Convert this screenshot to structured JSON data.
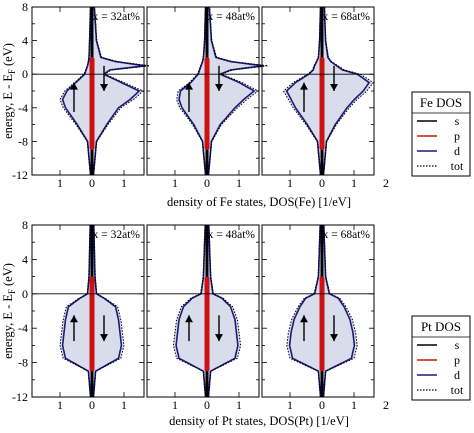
{
  "chart_data": [
    {
      "type": "area",
      "element": "Fe",
      "xlabel": "density of Fe states, DOS(Fe) [1/eV]",
      "ylabel_main": "energy, E - E",
      "ylabel_sub": "F",
      "ylabel_unit": "(eV)",
      "ylim": [
        -12,
        8
      ],
      "yticks": [
        "8",
        "4",
        "0",
        "-4",
        "-8",
        "-12"
      ],
      "xticks": [
        "1",
        "0",
        "1",
        "2"
      ],
      "legend_title": "Fe DOS",
      "legend_items": [
        "s",
        "p",
        "d",
        "tot"
      ],
      "panels": [
        {
          "label": "x = 32at%",
          "tot": {
            "energy": [
              -12,
              -8,
              -6,
              -4,
              -3,
              -2,
              -1,
              0,
              0.5,
              1,
              1.5,
              2,
              4,
              8
            ],
            "down": [
              0.05,
              0.15,
              0.5,
              0.9,
              1.0,
              0.85,
              0.55,
              0.25,
              0.2,
              0.15,
              0.12,
              0.1,
              0.08,
              0.05
            ],
            "up": [
              0.05,
              0.15,
              0.5,
              0.9,
              1.3,
              1.6,
              1.0,
              0.4,
              0.6,
              1.8,
              0.8,
              0.3,
              0.15,
              0.08
            ]
          }
        },
        {
          "label": "x = 48at%",
          "tot": {
            "energy": [
              -12,
              -8,
              -6,
              -4,
              -3,
              -2,
              -1,
              0,
              0.5,
              1,
              1.5,
              2,
              4,
              8
            ],
            "down": [
              0.05,
              0.15,
              0.45,
              0.85,
              0.95,
              0.9,
              0.55,
              0.3,
              0.25,
              0.2,
              0.15,
              0.12,
              0.08,
              0.05
            ],
            "up": [
              0.05,
              0.15,
              0.45,
              0.95,
              1.25,
              1.6,
              1.1,
              0.45,
              0.8,
              1.9,
              0.8,
              0.3,
              0.15,
              0.08
            ]
          }
        },
        {
          "label": "x = 68at%",
          "tot": {
            "energy": [
              -12,
              -8,
              -6,
              -4,
              -3,
              -2,
              -1,
              0,
              0.5,
              1,
              1.5,
              2,
              4,
              8
            ],
            "down": [
              0.05,
              0.15,
              0.5,
              0.9,
              1.05,
              1.2,
              0.9,
              0.45,
              0.3,
              0.25,
              0.18,
              0.12,
              0.08,
              0.05
            ],
            "up": [
              0.05,
              0.15,
              0.45,
              0.85,
              1.1,
              1.4,
              1.6,
              1.2,
              0.7,
              0.5,
              0.3,
              0.2,
              0.12,
              0.08
            ]
          }
        }
      ]
    },
    {
      "type": "area",
      "element": "Pt",
      "xlabel": "density of Pt states, DOS(Pt) [1/eV]",
      "ylabel_main": "energy, E - E",
      "ylabel_sub": "F",
      "ylabel_unit": "(eV)",
      "ylim": [
        -12,
        8
      ],
      "yticks": [
        "8",
        "4",
        "0",
        "-4",
        "-8",
        "-12"
      ],
      "xticks": [
        "1",
        "0",
        "1",
        "2"
      ],
      "legend_title": "Pt DOS",
      "legend_items": [
        "s",
        "p",
        "d",
        "tot"
      ],
      "panels": [
        {
          "label": "x = 32at%",
          "tot": {
            "energy": [
              -12,
              -9,
              -7.5,
              -6,
              -4.5,
              -3,
              -1.5,
              -0.5,
              0,
              2,
              8
            ],
            "down": [
              0.05,
              0.12,
              0.9,
              1.0,
              0.95,
              0.9,
              0.8,
              0.4,
              0.15,
              0.1,
              0.06
            ],
            "up": [
              0.05,
              0.12,
              0.9,
              1.0,
              0.95,
              0.9,
              0.8,
              0.4,
              0.15,
              0.1,
              0.06
            ]
          }
        },
        {
          "label": "x = 48at%",
          "tot": {
            "energy": [
              -12,
              -9,
              -7.5,
              -6,
              -4.5,
              -3,
              -1.5,
              -0.5,
              0,
              2,
              8
            ],
            "down": [
              0.05,
              0.12,
              0.95,
              1.05,
              1.0,
              0.95,
              0.8,
              0.5,
              0.2,
              0.12,
              0.06
            ],
            "up": [
              0.05,
              0.12,
              0.95,
              1.05,
              1.0,
              0.95,
              0.8,
              0.5,
              0.2,
              0.12,
              0.06
            ]
          }
        },
        {
          "label": "x = 68at%",
          "tot": {
            "energy": [
              -12,
              -9,
              -7.5,
              -6,
              -4.5,
              -3,
              -1.5,
              -0.5,
              0,
              2,
              8
            ],
            "down": [
              0.05,
              0.12,
              1.0,
              1.1,
              1.05,
              0.95,
              0.75,
              0.55,
              0.25,
              0.12,
              0.06
            ],
            "up": [
              0.05,
              0.12,
              1.0,
              1.1,
              1.05,
              0.95,
              0.75,
              0.55,
              0.25,
              0.12,
              0.06
            ]
          }
        }
      ]
    }
  ],
  "colors": {
    "fill": "#d9dcea",
    "s": "#000000",
    "p": "#cc1111",
    "d": "#1a1a7a",
    "tot": "#000000"
  }
}
